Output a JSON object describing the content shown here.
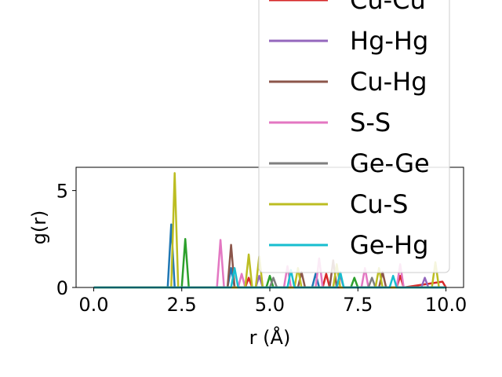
{
  "chart_data": {
    "type": "line",
    "xlabel": "r (Å)",
    "ylabel": "g(r)",
    "xlim": [
      -0.5,
      10.5
    ],
    "ylim": [
      0,
      6.2
    ],
    "x_ticks": [
      0.0,
      2.5,
      5.0,
      7.5,
      10.0
    ],
    "x_tick_labels": [
      "0.0",
      "2.5",
      "5.0",
      "7.5",
      "10.0"
    ],
    "y_ticks": [
      0,
      5
    ],
    "y_tick_labels": [
      "0",
      "5"
    ],
    "grid": false,
    "legend_placement": "upper-right",
    "legend_entries_visible": [
      "Cu-Cu",
      "Hg-Hg",
      "Cu-Hg",
      "S-S",
      "Ge-Ge",
      "Cu-S",
      "Ge-Hg"
    ],
    "series": [
      {
        "name": "",
        "color": "#1f77b4",
        "x": [
          0.0,
          2.1,
          2.2,
          2.3,
          3.8,
          3.9,
          4.0,
          6.2,
          6.3,
          6.4,
          10.0
        ],
        "y": [
          0,
          0,
          3.25,
          0,
          0,
          1.0,
          0,
          0,
          0.7,
          0,
          0
        ]
      },
      {
        "name": "",
        "color": "#2ca02c",
        "x": [
          0.0,
          2.5,
          2.6,
          2.7,
          4.9,
          5.0,
          5.1,
          7.3,
          7.4,
          7.5,
          10.0
        ],
        "y": [
          0,
          0,
          2.5,
          0,
          0,
          0.6,
          0,
          0,
          0.5,
          0,
          0
        ]
      },
      {
        "name": "Cu-Cu",
        "color": "#d62728",
        "x": [
          0.0,
          4.3,
          4.4,
          4.5,
          6.5,
          6.6,
          6.7,
          8.6,
          8.7,
          8.8,
          9.9,
          10.0
        ],
        "y": [
          0,
          0,
          0.5,
          0,
          0,
          0.7,
          0,
          0,
          0.6,
          0,
          0.3,
          0
        ]
      },
      {
        "name": "Hg-Hg",
        "color": "#9467bd",
        "x": [
          0.0,
          4.6,
          4.7,
          4.8,
          6.9,
          7.0,
          7.1,
          9.3,
          9.4,
          9.5,
          10.0
        ],
        "y": [
          0,
          0,
          0.6,
          0,
          0,
          0.6,
          0,
          0,
          0.5,
          0,
          0
        ]
      },
      {
        "name": "Cu-Hg",
        "color": "#8c564b",
        "x": [
          0.0,
          3.8,
          3.9,
          4.0,
          5.8,
          5.9,
          6.0,
          6.7,
          6.8,
          6.9,
          8.1,
          8.2,
          8.3,
          10.0
        ],
        "y": [
          0,
          0,
          2.2,
          0,
          0,
          0.8,
          0,
          0,
          1.4,
          0,
          0,
          0.8,
          0,
          0
        ]
      },
      {
        "name": "S-S",
        "color": "#e377c2",
        "x": [
          0.0,
          3.5,
          3.6,
          3.7,
          4.1,
          4.2,
          4.3,
          5.4,
          5.5,
          5.6,
          6.3,
          6.4,
          6.5,
          7.6,
          7.7,
          7.8,
          8.6,
          8.7,
          8.8,
          10.0
        ],
        "y": [
          0,
          0,
          2.45,
          0,
          0,
          0.7,
          0,
          0,
          1.1,
          0,
          0,
          1.5,
          0,
          0,
          1.0,
          0,
          0,
          1.2,
          0,
          0
        ]
      },
      {
        "name": "Ge-Ge",
        "color": "#7f7f7f",
        "x": [
          0.0,
          5.0,
          5.1,
          5.2,
          7.8,
          7.9,
          8.0,
          10.0
        ],
        "y": [
          0,
          0,
          0.5,
          0,
          0,
          0.5,
          0,
          0
        ]
      },
      {
        "name": "Cu-S",
        "color": "#bcbd22",
        "x": [
          0.0,
          2.2,
          2.3,
          2.4,
          4.3,
          4.4,
          4.5,
          4.6,
          4.7,
          4.8,
          5.7,
          5.8,
          5.9,
          6.8,
          6.9,
          7.0,
          8.0,
          8.1,
          8.2,
          9.6,
          9.7,
          9.8,
          10.0
        ],
        "y": [
          0,
          0,
          5.9,
          0,
          0,
          1.7,
          0,
          0,
          1.6,
          0,
          0,
          1.0,
          0,
          0,
          1.2,
          0,
          0,
          1.0,
          0,
          0,
          1.3,
          0,
          0
        ]
      },
      {
        "name": "Ge-Hg",
        "color": "#17becf",
        "x": [
          0.0,
          3.9,
          4.0,
          4.1,
          5.5,
          5.6,
          5.7,
          6.9,
          7.0,
          7.1,
          8.4,
          8.5,
          8.6,
          10.0
        ],
        "y": [
          0,
          0,
          1.0,
          0,
          0,
          0.9,
          0,
          0,
          0.8,
          0,
          0,
          0.6,
          0,
          0
        ]
      }
    ]
  }
}
